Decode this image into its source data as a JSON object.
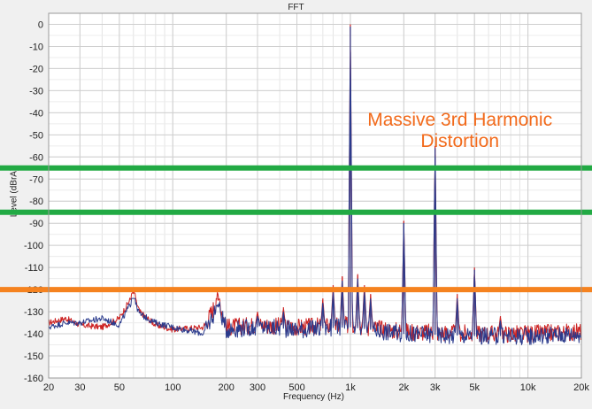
{
  "chart_data": {
    "type": "line",
    "title": "FFT",
    "xlabel": "Frequency (Hz)",
    "ylabel": "Level (dBrA)",
    "xscale": "log",
    "xlim": [
      20,
      20000
    ],
    "ylim": [
      -160,
      5
    ],
    "grid": true,
    "xticks": [
      {
        "v": 20,
        "label": "20"
      },
      {
        "v": 30,
        "label": "30"
      },
      {
        "v": 50,
        "label": "50"
      },
      {
        "v": 100,
        "label": "100"
      },
      {
        "v": 200,
        "label": "200"
      },
      {
        "v": 300,
        "label": "300"
      },
      {
        "v": 500,
        "label": "500"
      },
      {
        "v": 1000,
        "label": "1k"
      },
      {
        "v": 2000,
        "label": "2k"
      },
      {
        "v": 3000,
        "label": "3k"
      },
      {
        "v": 5000,
        "label": "5k"
      },
      {
        "v": 10000,
        "label": "10k"
      },
      {
        "v": 20000,
        "label": "20k"
      }
    ],
    "yticks": [
      0,
      -10,
      -20,
      -30,
      -40,
      -50,
      -60,
      -70,
      -80,
      -90,
      -100,
      -110,
      -120,
      -130,
      -140,
      -150,
      -160
    ],
    "series": [
      {
        "color": "#cc2222",
        "noise_floor": [
          [
            20,
            -135
          ],
          [
            25,
            -133
          ],
          [
            30,
            -136
          ],
          [
            40,
            -137
          ],
          [
            50,
            -133
          ],
          [
            60,
            -122
          ],
          [
            65,
            -130
          ],
          [
            80,
            -136
          ],
          [
            100,
            -138
          ],
          [
            150,
            -137
          ],
          [
            180,
            -124
          ],
          [
            200,
            -137
          ],
          [
            300,
            -136
          ],
          [
            500,
            -137
          ],
          [
            1000,
            -136
          ],
          [
            2000,
            -139
          ],
          [
            5000,
            -140
          ],
          [
            10000,
            -140
          ],
          [
            20000,
            -139
          ]
        ],
        "peaks": [
          [
            60,
            -121
          ],
          [
            180,
            -125
          ],
          [
            300,
            -130
          ],
          [
            420,
            -128
          ],
          [
            700,
            -124
          ],
          [
            800,
            -118
          ],
          [
            900,
            -114
          ],
          [
            1000,
            0
          ],
          [
            1100,
            -113
          ],
          [
            1200,
            -118
          ],
          [
            1300,
            -122
          ],
          [
            2000,
            -89
          ],
          [
            3000,
            -55
          ],
          [
            4000,
            -122
          ],
          [
            5000,
            -110
          ],
          [
            7000,
            -132
          ]
        ]
      },
      {
        "color": "#2a3a8c",
        "noise_floor": [
          [
            20,
            -137
          ],
          [
            25,
            -135
          ],
          [
            30,
            -135
          ],
          [
            40,
            -133
          ],
          [
            50,
            -136
          ],
          [
            60,
            -124
          ],
          [
            65,
            -131
          ],
          [
            80,
            -135
          ],
          [
            100,
            -137
          ],
          [
            150,
            -140
          ],
          [
            180,
            -127
          ],
          [
            200,
            -138
          ],
          [
            300,
            -137
          ],
          [
            500,
            -138
          ],
          [
            1000,
            -137
          ],
          [
            2000,
            -140
          ],
          [
            5000,
            -141
          ],
          [
            10000,
            -141
          ],
          [
            20000,
            -140
          ]
        ],
        "peaks": [
          [
            60,
            -124
          ],
          [
            180,
            -128
          ],
          [
            300,
            -132
          ],
          [
            420,
            -130
          ],
          [
            700,
            -126
          ],
          [
            800,
            -120
          ],
          [
            900,
            -116
          ],
          [
            1000,
            -1
          ],
          [
            1100,
            -115
          ],
          [
            1200,
            -120
          ],
          [
            1300,
            -124
          ],
          [
            2000,
            -90
          ],
          [
            3000,
            -56
          ],
          [
            4000,
            -124
          ],
          [
            5000,
            -111
          ],
          [
            7000,
            -134
          ]
        ]
      }
    ],
    "reference_lines": [
      {
        "y": -65,
        "color": "#22aa44"
      },
      {
        "y": -85,
        "color": "#22aa44"
      },
      {
        "y": -120,
        "color": "#f5821f"
      }
    ],
    "annotations": [
      {
        "lines": [
          "Massive 3rd Harmonic",
          "Distortion"
        ],
        "color": "#f26a1b",
        "x": 3000,
        "y": -47
      }
    ]
  }
}
